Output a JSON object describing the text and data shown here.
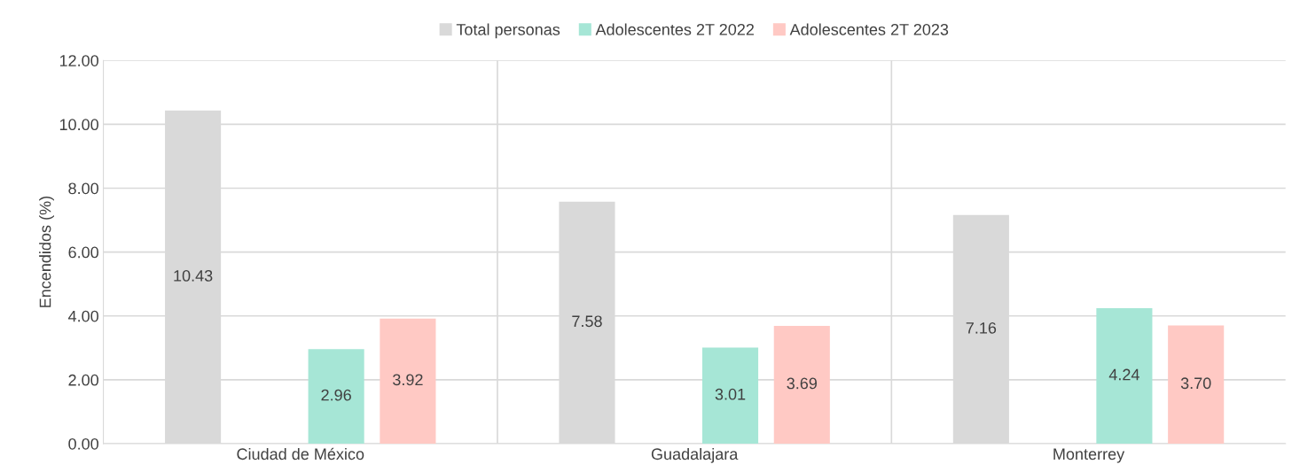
{
  "chart_data": {
    "type": "bar",
    "ylabel": "Encendidos (%)",
    "categories": [
      "Ciudad de México",
      "Guadalajara",
      "Monterrey"
    ],
    "series": [
      {
        "name": "Total personas",
        "color": "#d9d9d9",
        "values": [
          10.43,
          7.58,
          7.16
        ],
        "value_labels": [
          "10.43",
          "7.58",
          "7.16"
        ]
      },
      {
        "name": "Adolescentes 2T 2022",
        "color": "#a6e6d6",
        "values": [
          2.96,
          3.01,
          4.24
        ],
        "value_labels": [
          "2.96",
          "3.01",
          "4.24"
        ]
      },
      {
        "name": "Adolescentes 2T 2023",
        "color": "#ffc9c4",
        "values": [
          3.92,
          3.69,
          3.7
        ],
        "value_labels": [
          "3.92",
          "3.69",
          "3.70"
        ]
      }
    ],
    "ylim": [
      0,
      12
    ],
    "yticks": [
      {
        "value": 0,
        "label": "0.00"
      },
      {
        "value": 2,
        "label": "2.00"
      },
      {
        "value": 4,
        "label": "4.00"
      },
      {
        "value": 6,
        "label": "6.00"
      },
      {
        "value": 8,
        "label": "8.00"
      },
      {
        "value": 10,
        "label": "10.00"
      },
      {
        "value": 12,
        "label": "12.00"
      }
    ],
    "grid": true,
    "legend": "top"
  }
}
